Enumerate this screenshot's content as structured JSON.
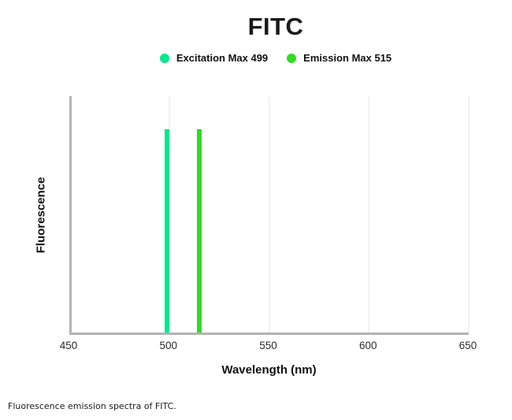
{
  "title": "FITC",
  "legend": [
    {
      "label": "Excitation Max 499",
      "color": "#00E88C"
    },
    {
      "label": "Emission Max 515",
      "color": "#2EDC22"
    }
  ],
  "axes": {
    "x_title": "Wavelength (nm)",
    "y_title": "Fluorescence",
    "axis_color": "#b3b3b3",
    "gridline_color": "#f2f2f2"
  },
  "caption": "Fluorescence emission spectra of FITC.",
  "chart_data": {
    "type": "bar",
    "title": "FITC",
    "xlabel": "Wavelength (nm)",
    "ylabel": "Fluorescence",
    "xlim": [
      450,
      650
    ],
    "x_ticks": [
      450,
      500,
      550,
      600,
      650
    ],
    "ylim": [
      0,
      1
    ],
    "grid": "vertical-at-ticks",
    "legend_position": "top-center",
    "series": [
      {
        "name": "Excitation Max 499",
        "peak_nm": 499,
        "height_frac": 0.85,
        "color": "#00E88C"
      },
      {
        "name": "Emission Max 515",
        "peak_nm": 515,
        "height_frac": 0.85,
        "color": "#2EDC22"
      }
    ]
  }
}
